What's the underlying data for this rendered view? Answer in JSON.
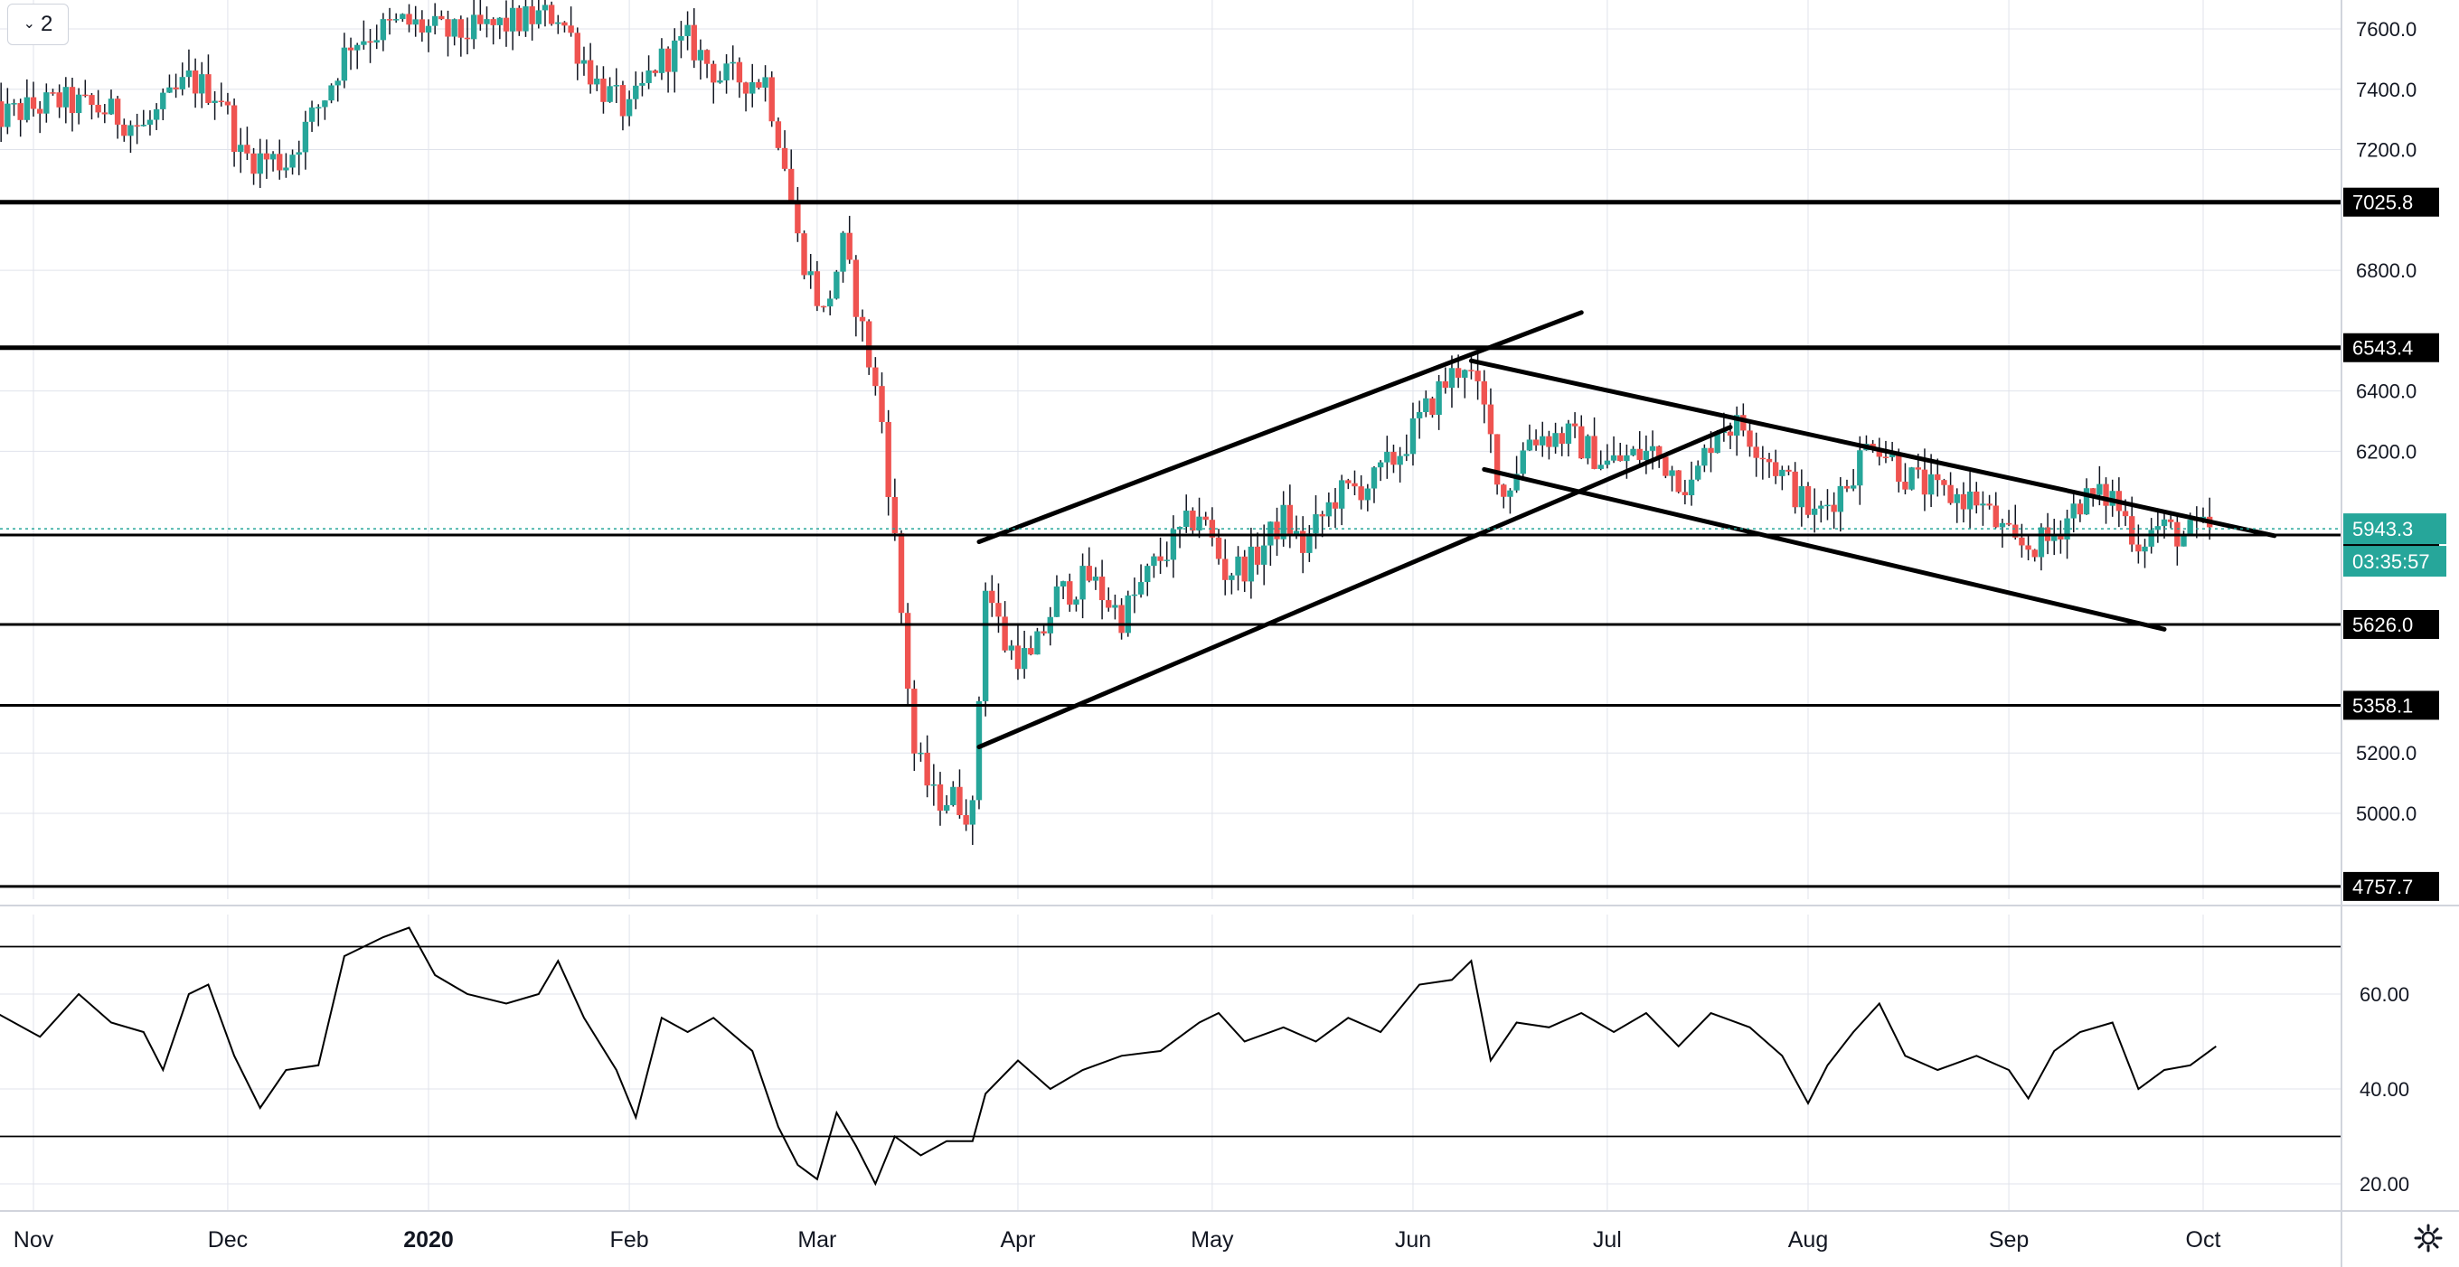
{
  "toolbar": {
    "collapse_count": "2",
    "collapse_icon": "chevron-down-icon"
  },
  "footer": {
    "settings_icon": "gear-icon"
  },
  "colors": {
    "up": "#26a69a",
    "down": "#ef5350",
    "accent": "#26a69a",
    "line": "#000000",
    "grid": "#e0e3eb"
  },
  "chart_data": [
    {
      "type": "candlestick",
      "title": "",
      "price_axis_ticks": [
        "7600.0",
        "7400.0",
        "7200.0",
        "6800.0",
        "6400.0",
        "6200.0",
        "5200.0",
        "5000.0"
      ],
      "ylim": [
        4700,
        7700
      ],
      "x_axis_ticks": [
        {
          "label": "Nov",
          "date": "2019-11-01"
        },
        {
          "label": "Dec",
          "date": "2019-12-01"
        },
        {
          "label": "2020",
          "date": "2020-01-01",
          "bold": true
        },
        {
          "label": "Feb",
          "date": "2020-02-01"
        },
        {
          "label": "Mar",
          "date": "2020-03-01"
        },
        {
          "label": "Apr",
          "date": "2020-04-01"
        },
        {
          "label": "May",
          "date": "2020-05-01"
        },
        {
          "label": "Jun",
          "date": "2020-06-01"
        },
        {
          "label": "Jul",
          "date": "2020-07-01"
        },
        {
          "label": "Aug",
          "date": "2020-08-01"
        },
        {
          "label": "Sep",
          "date": "2020-09-01"
        },
        {
          "label": "Oct",
          "date": "2020-10-01"
        }
      ],
      "price_path": [
        [
          "2019-10-25",
          7300
        ],
        [
          "2019-11-05",
          7360
        ],
        [
          "2019-11-12",
          7330
        ],
        [
          "2019-11-18",
          7270
        ],
        [
          "2019-11-25",
          7430
        ],
        [
          "2019-11-30",
          7380
        ],
        [
          "2019-12-03",
          7180
        ],
        [
          "2019-12-10",
          7160
        ],
        [
          "2019-12-16",
          7380
        ],
        [
          "2019-12-20",
          7560
        ],
        [
          "2019-12-28",
          7620
        ],
        [
          "2020-01-05",
          7580
        ],
        [
          "2020-01-12",
          7610
        ],
        [
          "2020-01-18",
          7640
        ],
        [
          "2020-01-21",
          7650
        ],
        [
          "2020-01-27",
          7420
        ],
        [
          "2020-02-01",
          7320
        ],
        [
          "2020-02-05",
          7480
        ],
        [
          "2020-02-10",
          7560
        ],
        [
          "2020-02-15",
          7440
        ],
        [
          "2020-02-22",
          7430
        ],
        [
          "2020-02-25",
          7160
        ],
        [
          "2020-02-27",
          6900
        ],
        [
          "2020-03-02",
          6650
        ],
        [
          "2020-03-05",
          6880
        ],
        [
          "2020-03-08",
          6600
        ],
        [
          "2020-03-11",
          6300
        ],
        [
          "2020-03-13",
          5900
        ],
        [
          "2020-03-16",
          5200
        ],
        [
          "2020-03-19",
          5050
        ],
        [
          "2020-03-22",
          5050
        ],
        [
          "2020-03-25",
          5000
        ],
        [
          "2020-03-27",
          5770
        ],
        [
          "2020-03-30",
          5560
        ],
        [
          "2020-04-03",
          5500
        ],
        [
          "2020-04-07",
          5720
        ],
        [
          "2020-04-12",
          5780
        ],
        [
          "2020-04-17",
          5650
        ],
        [
          "2020-04-22",
          5820
        ],
        [
          "2020-04-29",
          6000
        ],
        [
          "2020-05-03",
          5800
        ],
        [
          "2020-05-07",
          5830
        ],
        [
          "2020-05-12",
          5980
        ],
        [
          "2020-05-15",
          5880
        ],
        [
          "2020-05-20",
          6050
        ],
        [
          "2020-05-26",
          6100
        ],
        [
          "2020-05-30",
          6200
        ],
        [
          "2020-06-05",
          6400
        ],
        [
          "2020-06-09",
          6500
        ],
        [
          "2020-06-12",
          6330
        ],
        [
          "2020-06-15",
          6050
        ],
        [
          "2020-06-19",
          6250
        ],
        [
          "2020-06-25",
          6250
        ],
        [
          "2020-07-01",
          6160
        ],
        [
          "2020-07-08",
          6200
        ],
        [
          "2020-07-14",
          6080
        ],
        [
          "2020-07-18",
          6290
        ],
        [
          "2020-07-22",
          6280
        ],
        [
          "2020-07-27",
          6150
        ],
        [
          "2020-08-02",
          5980
        ],
        [
          "2020-08-07",
          6100
        ],
        [
          "2020-08-11",
          6250
        ],
        [
          "2020-08-16",
          6120
        ],
        [
          "2020-08-21",
          6060
        ],
        [
          "2020-08-27",
          6040
        ],
        [
          "2020-09-02",
          5880
        ],
        [
          "2020-09-07",
          5900
        ],
        [
          "2020-09-12",
          6040
        ],
        [
          "2020-09-17",
          6050
        ],
        [
          "2020-09-21",
          5900
        ],
        [
          "2020-09-24",
          5950
        ],
        [
          "2020-09-28",
          5920
        ],
        [
          "2020-10-02",
          5943.3
        ]
      ],
      "levels": [
        {
          "label": "7025.8",
          "value": 7025.8,
          "width": 5
        },
        {
          "label": "6543.4",
          "value": 6543.4,
          "width": 5
        },
        {
          "label": "5922.4",
          "value": 5922.4,
          "width": 3
        },
        {
          "label": "5626.0",
          "value": 5626.0,
          "width": 3
        },
        {
          "label": "5358.1",
          "value": 5358.1,
          "width": 3
        },
        {
          "label": "4757.7",
          "value": 4757.7,
          "width": 3
        }
      ],
      "current_price": {
        "label": "5943.3",
        "value": 5943.3
      },
      "countdown": "03:35:57",
      "trendlines": [
        {
          "from": [
            "2020-03-26",
            5900
          ],
          "to": [
            "2020-06-27",
            6660
          ]
        },
        {
          "from": [
            "2020-03-26",
            5220
          ],
          "to": [
            "2020-07-20",
            6280
          ]
        },
        {
          "from": [
            "2020-06-10",
            6500
          ],
          "to": [
            "2020-10-12",
            5920
          ]
        },
        {
          "from": [
            "2020-06-12",
            6140
          ],
          "to": [
            "2020-09-25",
            5610
          ]
        }
      ]
    },
    {
      "type": "line",
      "title": "",
      "ylim": [
        15,
        78
      ],
      "y_ticks": [
        "60.00",
        "40.00",
        "20.00"
      ],
      "bands": [
        70,
        30
      ],
      "series": [
        {
          "values": [
            [
              "2019-10-25",
              57
            ],
            [
              "2019-11-02",
              51
            ],
            [
              "2019-11-08",
              60
            ],
            [
              "2019-11-13",
              54
            ],
            [
              "2019-11-18",
              52
            ],
            [
              "2019-11-21",
              44
            ],
            [
              "2019-11-25",
              60
            ],
            [
              "2019-11-28",
              62
            ],
            [
              "2019-12-02",
              47
            ],
            [
              "2019-12-06",
              36
            ],
            [
              "2019-12-10",
              44
            ],
            [
              "2019-12-15",
              45
            ],
            [
              "2019-12-19",
              68
            ],
            [
              "2019-12-25",
              72
            ],
            [
              "2019-12-29",
              74
            ],
            [
              "2020-01-02",
              64
            ],
            [
              "2020-01-07",
              60
            ],
            [
              "2020-01-13",
              58
            ],
            [
              "2020-01-18",
              60
            ],
            [
              "2020-01-21",
              67
            ],
            [
              "2020-01-25",
              55
            ],
            [
              "2020-01-30",
              44
            ],
            [
              "2020-02-02",
              34
            ],
            [
              "2020-02-06",
              55
            ],
            [
              "2020-02-10",
              52
            ],
            [
              "2020-02-14",
              55
            ],
            [
              "2020-02-20",
              48
            ],
            [
              "2020-02-24",
              32
            ],
            [
              "2020-02-27",
              24
            ],
            [
              "2020-03-01",
              21
            ],
            [
              "2020-03-04",
              35
            ],
            [
              "2020-03-07",
              28
            ],
            [
              "2020-03-10",
              20
            ],
            [
              "2020-03-13",
              30
            ],
            [
              "2020-03-17",
              26
            ],
            [
              "2020-03-21",
              29
            ],
            [
              "2020-03-25",
              29
            ],
            [
              "2020-03-27",
              39
            ],
            [
              "2020-04-01",
              46
            ],
            [
              "2020-04-06",
              40
            ],
            [
              "2020-04-11",
              44
            ],
            [
              "2020-04-17",
              47
            ],
            [
              "2020-04-23",
              48
            ],
            [
              "2020-04-29",
              54
            ],
            [
              "2020-05-02",
              56
            ],
            [
              "2020-05-06",
              50
            ],
            [
              "2020-05-12",
              53
            ],
            [
              "2020-05-17",
              50
            ],
            [
              "2020-05-22",
              55
            ],
            [
              "2020-05-27",
              52
            ],
            [
              "2020-06-02",
              62
            ],
            [
              "2020-06-07",
              63
            ],
            [
              "2020-06-10",
              67
            ],
            [
              "2020-06-13",
              46
            ],
            [
              "2020-06-17",
              54
            ],
            [
              "2020-06-22",
              53
            ],
            [
              "2020-06-27",
              56
            ],
            [
              "2020-07-02",
              52
            ],
            [
              "2020-07-07",
              56
            ],
            [
              "2020-07-12",
              49
            ],
            [
              "2020-07-17",
              56
            ],
            [
              "2020-07-23",
              53
            ],
            [
              "2020-07-28",
              47
            ],
            [
              "2020-08-01",
              37
            ],
            [
              "2020-08-04",
              45
            ],
            [
              "2020-08-08",
              52
            ],
            [
              "2020-08-12",
              58
            ],
            [
              "2020-08-16",
              47
            ],
            [
              "2020-08-21",
              44
            ],
            [
              "2020-08-27",
              47
            ],
            [
              "2020-09-01",
              44
            ],
            [
              "2020-09-04",
              38
            ],
            [
              "2020-09-08",
              48
            ],
            [
              "2020-09-12",
              52
            ],
            [
              "2020-09-17",
              54
            ],
            [
              "2020-09-21",
              40
            ],
            [
              "2020-09-25",
              44
            ],
            [
              "2020-09-29",
              45
            ],
            [
              "2020-10-03",
              49
            ]
          ]
        }
      ]
    }
  ]
}
